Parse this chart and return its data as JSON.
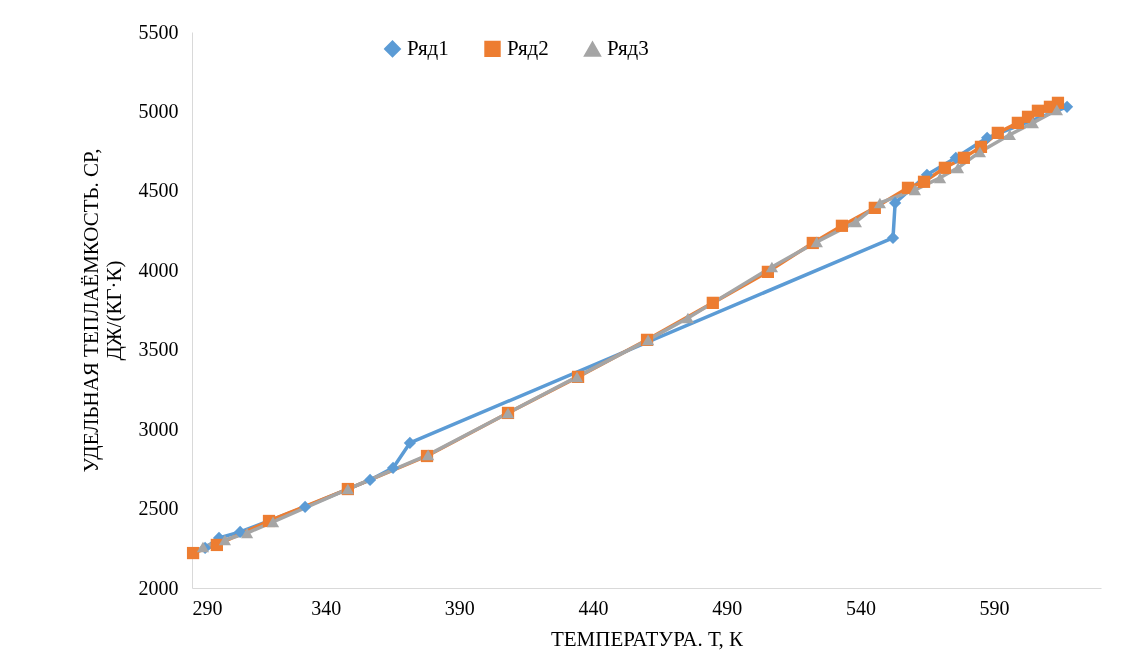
{
  "chart_data": {
    "type": "line",
    "xlabel": "ТЕМПЕРАТУРА. Т, К",
    "ylabel": "УДЕЛЬНАЯ ТЕПЛАЁМКОСТЬ. СР,\nДЖ/(КГ·К)",
    "xlim": [
      290,
      630
    ],
    "xticks": [
      290,
      340,
      390,
      440,
      490,
      540,
      590
    ],
    "ylim": [
      2000,
      5500
    ],
    "yticks": [
      2000,
      2500,
      3000,
      3500,
      4000,
      4500,
      5000,
      5500
    ],
    "legend": "top",
    "series": [
      {
        "name": "Ряд1",
        "color": "#5b9bd5",
        "marker": "diamond",
        "x": [
          294.9,
          300.1,
          308.0,
          332.3,
          356.6,
          365.2,
          371.5,
          552.2,
          553.0,
          564.9,
          575.7,
          587.4,
          617.3
        ],
        "values": [
          2252,
          2315,
          2353,
          2510,
          2680,
          2756,
          2913,
          4204,
          4424,
          4601,
          4708,
          4834,
          5029
        ]
      },
      {
        "name": "Ряд2",
        "color": "#ed7d31",
        "marker": "square",
        "x": [
          290.4,
          299.3,
          318.8,
          348.3,
          377.9,
          408.2,
          434.4,
          460.2,
          484.8,
          505.4,
          522.2,
          533.1,
          545.4,
          557.8,
          563.8,
          571.6,
          578.7,
          585.1,
          591.4,
          598.9,
          602.7,
          606.4,
          610.9,
          613.9
        ],
        "values": [
          2220,
          2271,
          2422,
          2623,
          2831,
          3102,
          3329,
          3562,
          3795,
          3990,
          4172,
          4280,
          4393,
          4519,
          4557,
          4645,
          4708,
          4777,
          4865,
          4928,
          4966,
          5004,
          5029,
          5054
        ]
      },
      {
        "name": "Ряд3",
        "color": "#a5a5a5",
        "marker": "triangle",
        "x": [
          294.1,
          302.3,
          310.6,
          320.3,
          348.3,
          378.3,
          408.2,
          434.0,
          460.6,
          475.5,
          506.9,
          523.7,
          538.3,
          547.3,
          560.4,
          569.8,
          576.5,
          584.7,
          595.9,
          604.5,
          613.5
        ],
        "values": [
          2258,
          2302,
          2346,
          2416,
          2623,
          2838,
          3102,
          3329,
          3562,
          3700,
          4021,
          4179,
          4305,
          4424,
          4506,
          4582,
          4645,
          4745,
          4853,
          4928,
          5010
        ]
      }
    ]
  }
}
